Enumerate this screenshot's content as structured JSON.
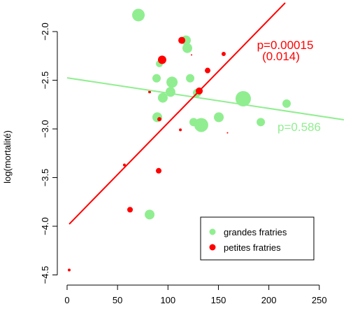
{
  "chart_data": {
    "type": "scatter",
    "y_label": "log(mortalité)",
    "xlim": [
      -8.3,
      274.4
    ],
    "ylim": [
      -4.59,
      -1.69
    ],
    "xticks": [
      0,
      50,
      100,
      150,
      200,
      250
    ],
    "yticks": [
      {
        "value": -2.0,
        "label": "−2.0"
      },
      {
        "value": -2.5,
        "label": "−2.5"
      },
      {
        "value": -3.0,
        "label": "−3.0"
      },
      {
        "value": -3.5,
        "label": "−3.5"
      },
      {
        "value": -4.0,
        "label": "−4.0"
      },
      {
        "value": -4.5,
        "label": "−4.5"
      }
    ],
    "series": [
      {
        "name": "grandes fratries",
        "color": "#90ee90",
        "x": [
          70.7,
          117.8,
          119.2,
          91.5,
          88.7,
          122,
          104,
          102.5,
          94.9,
          128.9,
          174.6,
          89.4,
          125.4,
          133,
          150.4,
          192,
          217.6,
          81.8
        ],
        "y": [
          -1.83,
          -2.09,
          -2.17,
          -2.33,
          -2.48,
          -2.48,
          -2.52,
          -2.62,
          -2.68,
          -2.63,
          -2.69,
          -2.88,
          -2.93,
          -2.96,
          -2.88,
          -2.93,
          -2.74,
          -3.88
        ],
        "sizes": [
          9,
          7,
          7,
          5,
          6,
          6,
          8,
          7,
          7,
          6,
          11,
          7,
          6,
          10,
          7,
          6,
          6,
          7
        ]
      },
      {
        "name": "petites fratries",
        "color": "#ff0000",
        "x": [
          113.7,
          94.2,
          139.3,
          155.2,
          123.4,
          131,
          81.8,
          91.5,
          112.3,
          159,
          56.8,
          90.8,
          62.4,
          2.1
        ],
        "y": [
          -2.09,
          -2.29,
          -2.4,
          -2.23,
          -2.24,
          -2.61,
          -2.62,
          -2.9,
          -3.01,
          -3.04,
          -3.37,
          -3.43,
          -3.83,
          -4.45
        ],
        "sizes": [
          5,
          6,
          4,
          3,
          1,
          5,
          2,
          3,
          2,
          1,
          2,
          4,
          4,
          2
        ]
      }
    ],
    "fits": [
      {
        "color": "#90ee90",
        "x": [
          0,
          274.4
        ],
        "y": [
          -2.475,
          -2.906
        ]
      },
      {
        "color": "#ff0000",
        "x": [
          2.1,
          216.2
        ],
        "y": [
          -3.978,
          -1.705
        ]
      }
    ],
    "annotations": [
      {
        "text": "p=0.00015",
        "color": "#ff0000"
      },
      {
        "text": "(0.014)",
        "color": "#ff0000"
      },
      {
        "text": "p=0.586",
        "color": "#90ee90"
      }
    ]
  }
}
